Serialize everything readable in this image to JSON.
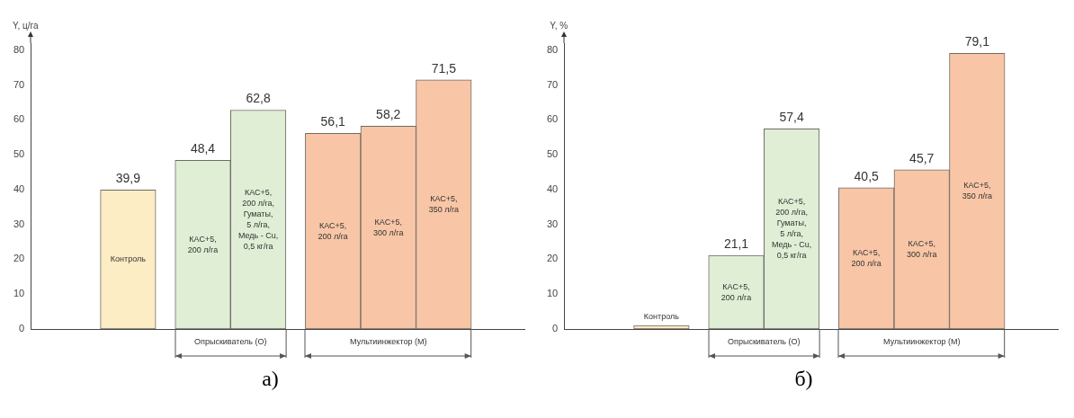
{
  "chart_data": [
    {
      "type": "bar",
      "title": "а)",
      "ylabel": "Y, ц/га",
      "categories": [
        "Контроль",
        "КАС+5, 200 л/га",
        "КАС+5, 200 л/га, Гуматы, 5 л/га, Медь - Cu, 0,5 кг/га",
        "КАС+5, 200 л/га",
        "КАС+5, 300 л/га",
        "КАС+5, 350 л/га"
      ],
      "values": [
        39.9,
        48.4,
        62.8,
        56.1,
        58.2,
        71.5
      ],
      "colors": [
        "#fdedc4",
        "#dfeed5",
        "#dfeed5",
        "#f8c6a6",
        "#f8c6a6",
        "#f8c6a6"
      ],
      "value_labels": [
        "39,9",
        "48,4",
        "62,8",
        "56,1",
        "58,2",
        "71,5"
      ],
      "annotations": [
        "Опрыскиватель (О)",
        "Мультиинжектор (М)"
      ],
      "ylim": [
        0,
        82
      ],
      "yticks": [
        0,
        10,
        20,
        30,
        40,
        50,
        60,
        70,
        80
      ],
      "grid": false,
      "legend": false
    },
    {
      "type": "bar",
      "title": "б)",
      "ylabel": "Y, %",
      "categories": [
        "Контроль",
        "КАС+5, 200 л/га",
        "КАС+5, 200 л/га, Гуматы, 5 л/га, Медь - Cu, 0,5 кг/га",
        "КАС+5, 200 л/га",
        "КАС+5, 300 л/га",
        "КАС+5, 350 л/га"
      ],
      "values": [
        1,
        21.1,
        57.4,
        40.5,
        45.7,
        79.1
      ],
      "colors": [
        "#fdedc4",
        "#dfeed5",
        "#dfeed5",
        "#f8c6a6",
        "#f8c6a6",
        "#f8c6a6"
      ],
      "value_labels": [
        null,
        "21,1",
        "57,4",
        "40,5",
        "45,7",
        "79,1"
      ],
      "annotations": [
        "Опрыскиватель (О)",
        "Мультиинжектор (М)"
      ],
      "ylim": [
        0,
        82
      ],
      "yticks": [
        0,
        10,
        20,
        30,
        40,
        50,
        60,
        70,
        80
      ],
      "grid": false,
      "legend": false
    }
  ]
}
